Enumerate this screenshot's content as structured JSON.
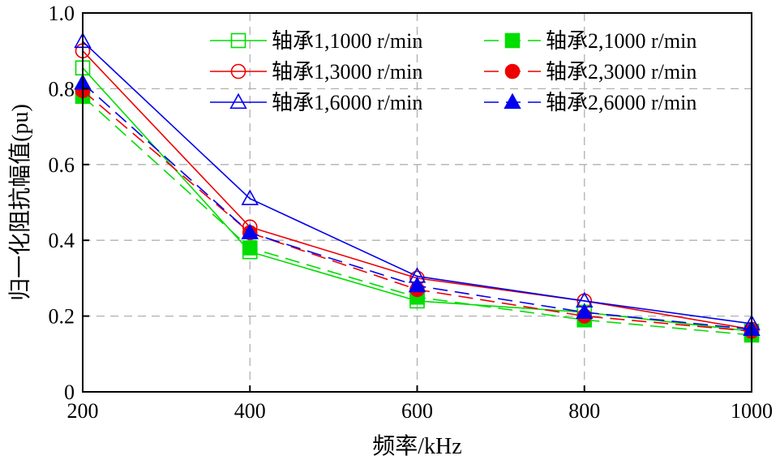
{
  "chart_data": {
    "type": "line",
    "title": "",
    "xlabel": "频率/kHz",
    "ylabel": "归一化阻抗幅值(pu)",
    "x": [
      200,
      400,
      600,
      800,
      1000
    ],
    "xticks": [
      "200",
      "400",
      "600",
      "800",
      "1000"
    ],
    "yticks": [
      "0",
      "0.2",
      "0.4",
      "0.6",
      "0.8",
      "1.0"
    ],
    "xlim": [
      200,
      1000
    ],
    "ylim": [
      0,
      1.0
    ],
    "grid": true,
    "legend_position": "top-right",
    "series": [
      {
        "name": "轴承1,1000 r/min",
        "color": "#00dd00",
        "line": "solid",
        "marker": "square",
        "filled": false,
        "values": [
          0.855,
          0.37,
          0.24,
          0.21,
          0.16
        ]
      },
      {
        "name": "轴承2,1000 r/min",
        "color": "#00dd00",
        "line": "dashed",
        "marker": "square",
        "filled": true,
        "values": [
          0.78,
          0.38,
          0.25,
          0.19,
          0.15
        ]
      },
      {
        "name": "轴承1,3000 r/min",
        "color": "#ee0000",
        "line": "solid",
        "marker": "circle",
        "filled": false,
        "values": [
          0.9,
          0.435,
          0.3,
          0.24,
          0.165
        ]
      },
      {
        "name": "轴承2,3000 r/min",
        "color": "#ee0000",
        "line": "dashed",
        "marker": "circle",
        "filled": true,
        "values": [
          0.795,
          0.42,
          0.27,
          0.2,
          0.16
        ]
      },
      {
        "name": "轴承1,6000 r/min",
        "color": "#0000ee",
        "line": "solid",
        "marker": "triangle",
        "filled": false,
        "values": [
          0.925,
          0.51,
          0.305,
          0.24,
          0.18
        ]
      },
      {
        "name": "轴承2,6000 r/min",
        "color": "#0000ee",
        "line": "dashed",
        "marker": "triangle",
        "filled": true,
        "values": [
          0.815,
          0.42,
          0.28,
          0.21,
          0.165
        ]
      }
    ]
  }
}
